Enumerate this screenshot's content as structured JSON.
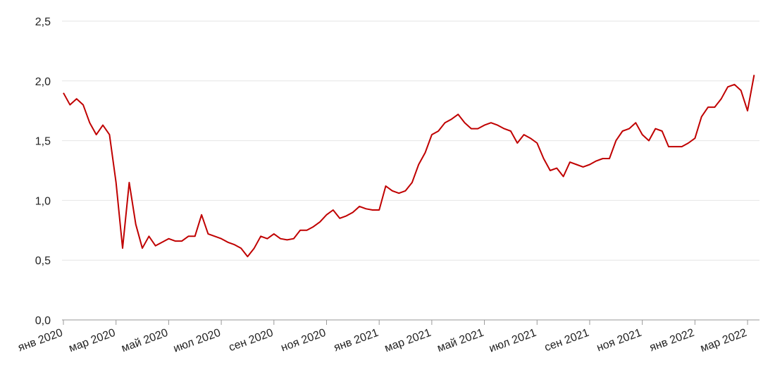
{
  "chart_data": {
    "type": "line",
    "categories": [
      "янв 2020",
      null,
      null,
      null,
      null,
      null,
      null,
      null,
      "мар 2020",
      null,
      null,
      null,
      null,
      null,
      null,
      null,
      "май 2020",
      null,
      null,
      null,
      null,
      null,
      null,
      null,
      "июл 2020",
      null,
      null,
      null,
      null,
      null,
      null,
      null,
      "сен 2020",
      null,
      null,
      null,
      null,
      null,
      null,
      null,
      "ноя 2020",
      null,
      null,
      null,
      null,
      null,
      null,
      null,
      "янв 2021",
      null,
      null,
      null,
      null,
      null,
      null,
      null,
      "мар 2021",
      null,
      null,
      null,
      null,
      null,
      null,
      null,
      "май 2021",
      null,
      null,
      null,
      null,
      null,
      null,
      null,
      "июл 2021",
      null,
      null,
      null,
      null,
      null,
      null,
      null,
      "сен 2021",
      null,
      null,
      null,
      null,
      null,
      null,
      null,
      "ноя 2021",
      null,
      null,
      null,
      null,
      null,
      null,
      null,
      "янв 2022",
      null,
      null,
      null,
      null,
      null,
      null,
      null,
      "мар 2022",
      null
    ],
    "values": [
      1.9,
      1.8,
      1.85,
      1.8,
      1.65,
      1.55,
      1.63,
      1.55,
      1.15,
      0.6,
      1.15,
      0.8,
      0.6,
      0.7,
      0.62,
      0.65,
      0.68,
      0.66,
      0.66,
      0.7,
      0.7,
      0.88,
      0.72,
      0.7,
      0.68,
      0.65,
      0.63,
      0.6,
      0.53,
      0.6,
      0.7,
      0.68,
      0.72,
      0.68,
      0.67,
      0.68,
      0.75,
      0.75,
      0.78,
      0.82,
      0.88,
      0.92,
      0.85,
      0.87,
      0.9,
      0.95,
      0.93,
      0.92,
      0.92,
      1.12,
      1.08,
      1.06,
      1.08,
      1.15,
      1.3,
      1.4,
      1.55,
      1.58,
      1.65,
      1.68,
      1.72,
      1.65,
      1.6,
      1.6,
      1.63,
      1.65,
      1.63,
      1.6,
      1.58,
      1.48,
      1.55,
      1.52,
      1.48,
      1.35,
      1.25,
      1.27,
      1.2,
      1.32,
      1.3,
      1.28,
      1.3,
      1.33,
      1.35,
      1.35,
      1.5,
      1.58,
      1.6,
      1.65,
      1.55,
      1.5,
      1.6,
      1.58,
      1.45,
      1.45,
      1.45,
      1.48,
      1.52,
      1.7,
      1.78,
      1.78,
      1.85,
      1.95,
      1.97,
      1.92,
      1.75,
      2.05
    ],
    "color": "#c00000",
    "ylim": [
      0,
      2.5
    ],
    "yticks": [
      {
        "value": 0,
        "label": "0,0"
      },
      {
        "value": 0.5,
        "label": "0,5"
      },
      {
        "value": 1,
        "label": "1,0"
      },
      {
        "value": 1.5,
        "label": "1,5"
      },
      {
        "value": 2,
        "label": "2,0"
      },
      {
        "value": 2.5,
        "label": "2,5"
      }
    ],
    "grid": true
  }
}
